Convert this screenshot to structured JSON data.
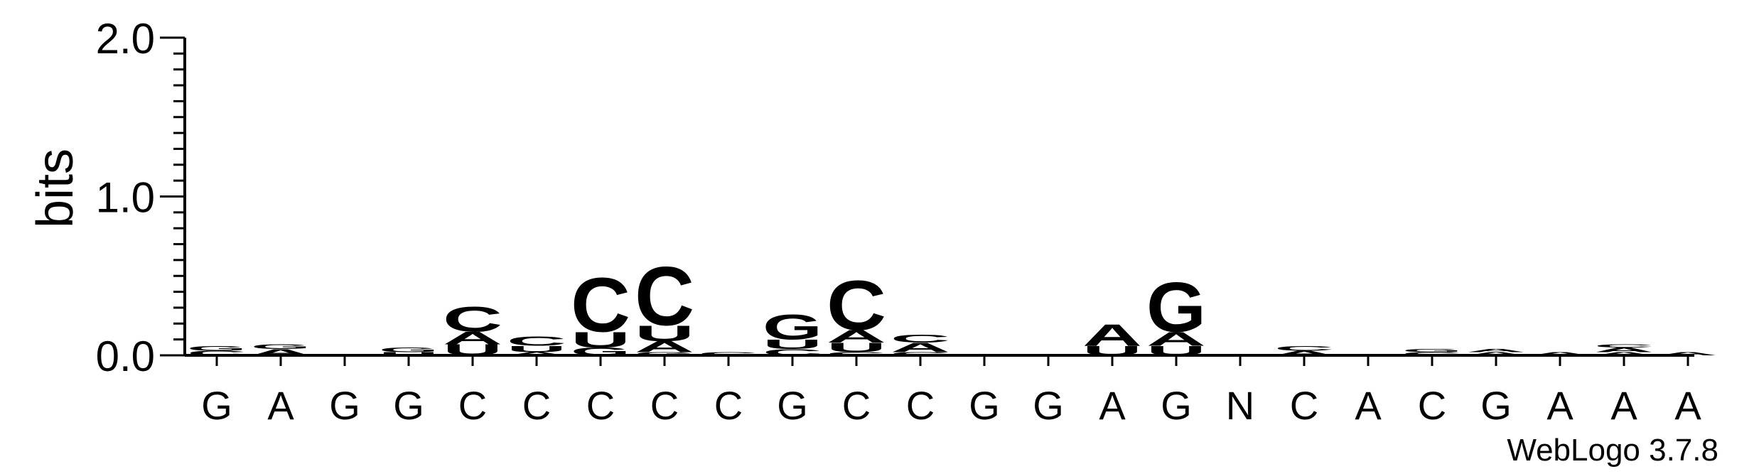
{
  "chart_data": {
    "type": "sequence-logo",
    "ylabel": "bits",
    "xlabel": "",
    "ylim": [
      0,
      2
    ],
    "yticks": [
      "0.0",
      "1.0",
      "2.0"
    ],
    "credit": "WebLogo 3.7.8",
    "colors": {
      "A": "#ff8c00",
      "U": "#ff8c00",
      "C": "#0000ff",
      "G": "#0000ff"
    },
    "sequence": [
      "G",
      "A",
      "G",
      "G",
      "C",
      "C",
      "C",
      "C",
      "C",
      "G",
      "C",
      "C",
      "G",
      "G",
      "A",
      "G",
      "N",
      "C",
      "A",
      "C",
      "G",
      "A",
      "A",
      "A"
    ],
    "positions": [
      {
        "stack": [
          {
            "l": "C",
            "h": 0.03
          },
          {
            "l": "G",
            "h": 0.03
          }
        ]
      },
      {
        "stack": [
          {
            "l": "A",
            "h": 0.04
          },
          {
            "l": "G",
            "h": 0.03
          }
        ]
      },
      {
        "stack": []
      },
      {
        "stack": [
          {
            "l": "U",
            "h": 0.02
          },
          {
            "l": "G",
            "h": 0.03
          }
        ]
      },
      {
        "stack": [
          {
            "l": "U",
            "h": 0.07
          },
          {
            "l": "A",
            "h": 0.08
          },
          {
            "l": "C",
            "h": 0.16
          }
        ]
      },
      {
        "stack": [
          {
            "l": "A",
            "h": 0.02
          },
          {
            "l": "U",
            "h": 0.04
          },
          {
            "l": "C",
            "h": 0.06
          }
        ]
      },
      {
        "stack": [
          {
            "l": "G",
            "h": 0.05
          },
          {
            "l": "U",
            "h": 0.1
          },
          {
            "l": "C",
            "h": 0.35
          }
        ]
      },
      {
        "stack": [
          {
            "l": "G",
            "h": 0.02
          },
          {
            "l": "A",
            "h": 0.07
          },
          {
            "l": "U",
            "h": 0.1
          },
          {
            "l": "C",
            "h": 0.38
          }
        ]
      },
      {
        "stack": [
          {
            "l": "C",
            "h": 0.02
          }
        ]
      },
      {
        "stack": [
          {
            "l": "C",
            "h": 0.04
          },
          {
            "l": "U",
            "h": 0.06
          },
          {
            "l": "G",
            "h": 0.16
          }
        ]
      },
      {
        "stack": [
          {
            "l": "C",
            "h": 0.02
          },
          {
            "l": "U",
            "h": 0.06
          },
          {
            "l": "A",
            "h": 0.08
          },
          {
            "l": "C",
            "h": 0.32
          }
        ]
      },
      {
        "stack": [
          {
            "l": "C",
            "h": 0.02
          },
          {
            "l": "A",
            "h": 0.06
          },
          {
            "l": "C",
            "h": 0.05
          }
        ]
      },
      {
        "stack": []
      },
      {
        "stack": [
          {
            "l": "G",
            "h": 0.01
          }
        ]
      },
      {
        "stack": [
          {
            "l": "U",
            "h": 0.06
          },
          {
            "l": "A",
            "h": 0.14
          }
        ]
      },
      {
        "stack": [
          {
            "l": "U",
            "h": 0.06
          },
          {
            "l": "A",
            "h": 0.09
          },
          {
            "l": "G",
            "h": 0.32
          }
        ]
      },
      {
        "stack": []
      },
      {
        "stack": [
          {
            "l": "A",
            "h": 0.03
          },
          {
            "l": "C",
            "h": 0.03
          }
        ]
      },
      {
        "stack": []
      },
      {
        "stack": [
          {
            "l": "C",
            "h": 0.02
          },
          {
            "l": "G",
            "h": 0.02
          }
        ]
      },
      {
        "stack": [
          {
            "l": "A",
            "h": 0.02
          },
          {
            "l": "A",
            "h": 0.02
          }
        ]
      },
      {
        "stack": [
          {
            "l": "A",
            "h": 0.02
          }
        ]
      },
      {
        "stack": [
          {
            "l": "A",
            "h": 0.02
          },
          {
            "l": "A",
            "h": 0.03
          },
          {
            "l": "C",
            "h": 0.02
          }
        ]
      },
      {
        "stack": [
          {
            "l": "A",
            "h": 0.02
          }
        ]
      }
    ]
  }
}
